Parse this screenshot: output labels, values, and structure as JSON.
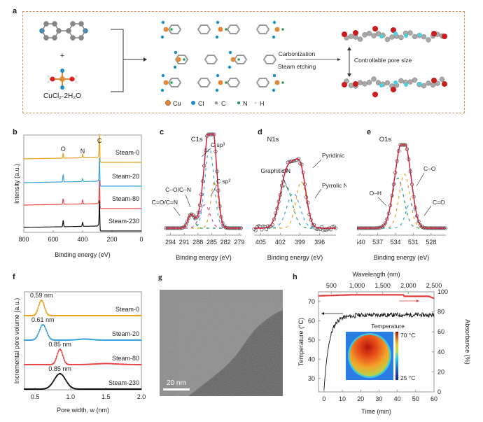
{
  "panels": {
    "a": {
      "letter": "a",
      "reactant_plus": "+",
      "reactant_label": "CuCl₂·2H₂O",
      "arrow_labels": {
        "top": "Carbonization",
        "bottom": "Steam etching"
      },
      "pore_label": "Controllable pore size",
      "legend": [
        {
          "symbol": "Cu",
          "color": "#e08a3a"
        },
        {
          "symbol": "Cl",
          "color": "#1f8ec4"
        },
        {
          "symbol": "C",
          "color": "#8a8a8a"
        },
        {
          "symbol": "N",
          "color": "#2a9a5a"
        },
        {
          "symbol": "H",
          "color": "#d0d0d0"
        }
      ]
    },
    "g": {
      "letter": "g",
      "scale_bar": "20 nm"
    }
  },
  "chart_data": [
    {
      "id": "b",
      "letter": "b",
      "type": "line",
      "title": "",
      "xlabel": "Binding energy (eV)",
      "ylabel": "Intensity (a.u.)",
      "xlim": [
        800,
        0
      ],
      "xticks": [
        800,
        600,
        400,
        200,
        0
      ],
      "peak_labels": [
        {
          "label": "O",
          "x": 532
        },
        {
          "label": "N",
          "x": 400
        },
        {
          "label": "C",
          "x": 285
        }
      ],
      "series": [
        {
          "name": "Steam-0",
          "color": "#e8a21d",
          "offset": 3,
          "peaks": {
            "O": 0.35,
            "N": 0.25,
            "C": 1.0
          }
        },
        {
          "name": "Steam-20",
          "color": "#3ba3dc",
          "offset": 2,
          "peaks": {
            "O": 0.55,
            "N": 0.2,
            "C": 1.0
          }
        },
        {
          "name": "Steam-80",
          "color": "#e8484a",
          "offset": 1,
          "peaks": {
            "O": 0.4,
            "N": 0.3,
            "C": 1.0
          }
        },
        {
          "name": "Steam-230",
          "color": "#111111",
          "offset": 0,
          "peaks": {
            "O": 0.45,
            "N": 0.3,
            "C": 1.1
          }
        }
      ]
    },
    {
      "id": "c",
      "letter": "c",
      "type": "line",
      "title": "C1s",
      "xlabel": "Binding energy (eV)",
      "xlim": [
        295,
        278.5
      ],
      "xticks": [
        294,
        291,
        288,
        285,
        282,
        279
      ],
      "annotations": [
        "C sp³",
        "C sp²",
        "C–O/C–N",
        "C=O/C=N"
      ],
      "components": [
        {
          "name": "C sp3",
          "center": 285.5,
          "height": 0.85,
          "width": 1.0,
          "color": "#3ba3dc"
        },
        {
          "name": "C sp2",
          "center": 284.4,
          "height": 0.5,
          "width": 0.8,
          "color": "#e8a21d"
        },
        {
          "name": "C–O/C–N",
          "center": 286.5,
          "height": 0.25,
          "width": 1.1,
          "color": "#c64ac6"
        },
        {
          "name": "C=O/C=N",
          "center": 289.5,
          "height": 0.15,
          "width": 0.7,
          "color": "#2a9a5a"
        }
      ],
      "fit_color": "#d21f3c"
    },
    {
      "id": "d",
      "letter": "d",
      "type": "line",
      "title": "N1s",
      "xlabel": "Binding energy (eV)",
      "xlim": [
        406,
        393.5
      ],
      "xticks": [
        405,
        402,
        399,
        396
      ],
      "annotations": [
        "Graphitic N",
        "Pyridinic N",
        "Pyrrolic N"
      ],
      "components": [
        {
          "name": "Graphitic N",
          "center": 401.2,
          "height": 0.55,
          "width": 1.0,
          "color": "#2a9a5a"
        },
        {
          "name": "Pyridinic N",
          "center": 398.8,
          "height": 0.6,
          "width": 0.8,
          "color": "#e8a21d"
        },
        {
          "name": "Pyrrolic N",
          "center": 400.0,
          "height": 0.45,
          "width": 1.0,
          "color": "#3ba3dc"
        }
      ],
      "fit_color": "#d21f3c"
    },
    {
      "id": "e",
      "letter": "e",
      "type": "line",
      "title": "O1s",
      "xlabel": "Binding energy (eV)",
      "xlim": [
        540.5,
        525.5
      ],
      "xticks": [
        540,
        537,
        534,
        531,
        528
      ],
      "annotations": [
        "O–H",
        "C–O",
        "C=O"
      ],
      "components": [
        {
          "name": "O–H",
          "center": 533.6,
          "height": 0.6,
          "width": 1.0,
          "color": "#2a9a5a"
        },
        {
          "name": "C–O",
          "center": 532.5,
          "height": 0.65,
          "width": 0.9,
          "color": "#e8a21d"
        },
        {
          "name": "C=O",
          "center": 531.5,
          "height": 0.3,
          "width": 0.8,
          "color": "#3ba3dc"
        }
      ],
      "fit_color": "#d21f3c"
    },
    {
      "id": "f",
      "letter": "f",
      "type": "line",
      "xlabel": "Pore width, w (nm)",
      "ylabel": "Incremental pore volume (a.u.)",
      "xlim": [
        0.35,
        2.0
      ],
      "xticks": [
        0.5,
        1.0,
        1.5,
        2.0
      ],
      "xtick_labels": [
        "0.5",
        "1.0",
        "1.5",
        "2.0"
      ],
      "series": [
        {
          "name": "Steam-0",
          "color": "#e8a21d",
          "offset": 3,
          "peak": 0.59,
          "peak_label": "0.59 nm",
          "width": 0.04
        },
        {
          "name": "Steam-20",
          "color": "#3ba3dc",
          "offset": 2,
          "peak": 0.61,
          "peak_label": "0.61 nm",
          "width": 0.05
        },
        {
          "name": "Steam-80",
          "color": "#e8484a",
          "offset": 1,
          "peak": 0.85,
          "peak_label": "0.85 nm",
          "width": 0.04
        },
        {
          "name": "Steam-230",
          "color": "#111111",
          "offset": 0,
          "peak": 0.85,
          "peak_label": "0.85 nm",
          "width": 0.08
        }
      ]
    },
    {
      "id": "h",
      "letter": "h",
      "type": "line",
      "xlabel": "Time (min)",
      "ylabel_left": "Temperature (°C)",
      "ylabel_right": "Absorbance (%)",
      "xlabel_top": "Wavelength (nm)",
      "xlim": [
        -3,
        60
      ],
      "xticks": [
        0,
        10,
        20,
        30,
        40,
        50,
        60
      ],
      "ylim_left": [
        23,
        75
      ],
      "yticks_left": [
        30,
        40,
        50,
        60,
        70
      ],
      "ylim_right": [
        0,
        100
      ],
      "yticks_right": [
        0,
        20,
        40,
        60,
        80,
        100
      ],
      "xlim_top": [
        250,
        2500
      ],
      "xticks_top": [
        500,
        1000,
        1500,
        2000,
        2500
      ],
      "xticks_top_labels": [
        "500",
        "1,000",
        "1,500",
        "2,000",
        "2,500"
      ],
      "series": [
        {
          "name": "Temperature",
          "axis": "left",
          "color": "#111111",
          "plateau": 62.5,
          "start": 24
        },
        {
          "name": "Absorbance",
          "axis": "right",
          "color": "#e03a3a",
          "level": 97
        }
      ],
      "inset": {
        "title": "Temperature",
        "max_label": "70 °C",
        "min_label": "25 °C"
      }
    }
  ]
}
